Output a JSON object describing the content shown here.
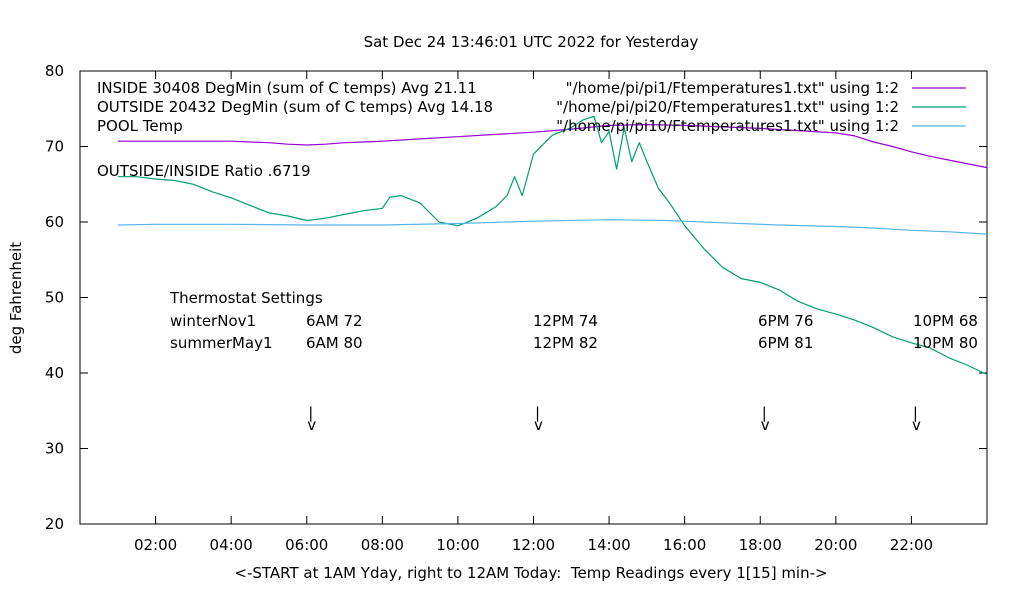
{
  "chart_data": {
    "type": "line",
    "title": "Sat Dec 24 13:46:01 UTC 2022 for Yesterday",
    "xlabel": "<-START at 1AM Yday, right to 12AM Today:  Temp Readings every 1[15] min->",
    "ylabel": "deg Fahrenheit",
    "xlim": [
      0,
      24
    ],
    "ylim": [
      20,
      80
    ],
    "yticks": [
      20,
      30,
      40,
      50,
      60,
      70,
      80
    ],
    "xticks": [
      {
        "x": 2,
        "label": "02:00"
      },
      {
        "x": 4,
        "label": "04:00"
      },
      {
        "x": 6,
        "label": "06:00"
      },
      {
        "x": 8,
        "label": "08:00"
      },
      {
        "x": 10,
        "label": "10:00"
      },
      {
        "x": 12,
        "label": "12:00"
      },
      {
        "x": 14,
        "label": "14:00"
      },
      {
        "x": 16,
        "label": "16:00"
      },
      {
        "x": 18,
        "label": "18:00"
      },
      {
        "x": 20,
        "label": "20:00"
      },
      {
        "x": 22,
        "label": "22:00"
      }
    ],
    "grid": false,
    "legend_position": "top-left",
    "series": [
      {
        "name": "INSIDE 30408 DegMin (sum of C temps) Avg 21.11",
        "source": "\"/home/pi/pi1/Ftemperatures1.txt\" using 1:2",
        "color": "#9400d3",
        "x": [
          1.0,
          2.0,
          3.0,
          4.0,
          4.5,
          5.0,
          5.5,
          6.0,
          6.5,
          7.0,
          7.5,
          8.0,
          9.0,
          10.0,
          11.0,
          12.0,
          13.0,
          14.0,
          15.0,
          16.0,
          17.0,
          18.0,
          19.0,
          20.0,
          20.5,
          21.0,
          21.5,
          22.0,
          22.5,
          23.0,
          23.5,
          24.0
        ],
        "values": [
          70.7,
          70.7,
          70.7,
          70.7,
          70.6,
          70.5,
          70.3,
          70.2,
          70.3,
          70.5,
          70.6,
          70.7,
          71.0,
          71.3,
          71.6,
          71.9,
          72.3,
          72.8,
          72.9,
          72.8,
          72.6,
          72.4,
          72.1,
          71.8,
          71.4,
          70.6,
          70.0,
          69.3,
          68.7,
          68.2,
          67.7,
          67.2
        ]
      },
      {
        "name": "OUTSIDE 20432 DegMin (sum of C temps) Avg 14.18",
        "source": "\"/home/pi/pi20/Ftemperatures1.txt\" using 1:2",
        "color": "#009e73",
        "x": [
          1.0,
          1.5,
          2.0,
          2.5,
          3.0,
          3.5,
          4.0,
          4.5,
          5.0,
          5.5,
          6.0,
          6.5,
          7.0,
          7.5,
          8.0,
          8.2,
          8.5,
          9.0,
          9.5,
          10.0,
          10.5,
          11.0,
          11.3,
          11.5,
          11.7,
          12.0,
          12.3,
          12.5,
          13.0,
          13.3,
          13.6,
          13.8,
          14.0,
          14.2,
          14.4,
          14.6,
          14.8,
          15.0,
          15.3,
          15.6,
          16.0,
          16.5,
          17.0,
          17.5,
          18.0,
          18.5,
          19.0,
          19.5,
          20.0,
          20.5,
          21.0,
          21.5,
          22.0,
          22.5,
          23.0,
          23.5,
          24.0
        ],
        "values": [
          66.0,
          66.0,
          65.7,
          65.5,
          65.0,
          64.0,
          63.2,
          62.2,
          61.2,
          60.8,
          60.2,
          60.5,
          61.0,
          61.5,
          61.8,
          63.3,
          63.5,
          62.5,
          60.0,
          59.5,
          60.5,
          62.0,
          63.5,
          66.0,
          63.5,
          69.0,
          70.5,
          71.5,
          72.5,
          73.5,
          74.0,
          70.5,
          72.0,
          67.0,
          72.5,
          68.0,
          70.5,
          68.0,
          64.5,
          62.5,
          59.5,
          56.5,
          54.0,
          52.5,
          52.0,
          51.0,
          49.5,
          48.5,
          47.8,
          47.0,
          46.0,
          44.8,
          44.0,
          43.3,
          42.0,
          41.0,
          39.8
        ]
      },
      {
        "name": "POOL Temp",
        "source": "\"/home/pi/pi10/Ftemperatures1.txt\" using 1:2",
        "color": "#56b4e9",
        "x": [
          1.0,
          2.0,
          4.0,
          6.0,
          8.0,
          10.0,
          12.0,
          14.0,
          15.5,
          17.0,
          18.5,
          20.0,
          21.0,
          22.0,
          23.0,
          24.0
        ],
        "values": [
          59.6,
          59.7,
          59.7,
          59.6,
          59.6,
          59.8,
          60.1,
          60.3,
          60.2,
          59.9,
          59.6,
          59.4,
          59.2,
          58.9,
          58.7,
          58.4
        ]
      }
    ],
    "annotations": {
      "ratio": "OUTSIDE/INSIDE Ratio .6719",
      "thermostat_title": "Thermostat Settings",
      "rows": [
        {
          "label": "winterNov1",
          "settings": [
            "6AM 72",
            "12PM 74",
            "6PM 76",
            "10PM 68"
          ]
        },
        {
          "label": "summerMay1",
          "settings": [
            "6AM 80",
            "12PM 82",
            "6PM 81",
            "10PM 80"
          ]
        }
      ],
      "arrow_times": [
        6.0,
        12.0,
        18.0,
        22.0
      ],
      "arrow_bar": "|",
      "arrow_head": "v"
    }
  }
}
